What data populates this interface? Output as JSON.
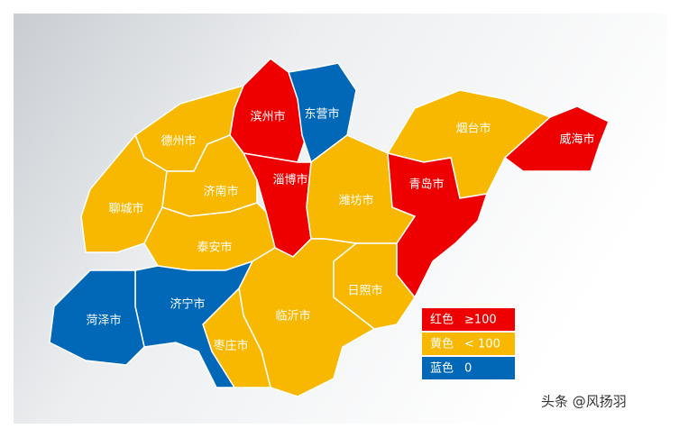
{
  "regions": [
    {
      "name": "滨州市",
      "level": 0
    },
    {
      "name": "东营市",
      "level": 2
    },
    {
      "name": "淄博市",
      "level": 0
    },
    {
      "name": "德州市",
      "level": 1
    },
    {
      "name": "聊城市",
      "level": 1
    },
    {
      "name": "济南市",
      "level": 1
    },
    {
      "name": "泰安市",
      "level": 1
    },
    {
      "name": "潍坊市",
      "level": 1
    },
    {
      "name": "烟台市",
      "level": 1
    },
    {
      "name": "威海市",
      "level": 0
    },
    {
      "name": "青岛市",
      "level": 0
    },
    {
      "name": "日照市",
      "level": 1
    },
    {
      "name": "临沂市",
      "level": 1
    },
    {
      "name": "枣庄市",
      "level": 1
    },
    {
      "name": "济宁市",
      "level": 2
    },
    {
      "name": "菏泽市",
      "level": 2
    }
  ],
  "legend": [
    {
      "color": "#ee0000",
      "name": "红色",
      "range": "≥100"
    },
    {
      "color": "#f8b800",
      "name": "黄色",
      "range": "< 100"
    },
    {
      "color": "#0068b7",
      "name": "蓝色",
      "range": "0"
    }
  ],
  "watermark": "头条 @风扬羽"
}
